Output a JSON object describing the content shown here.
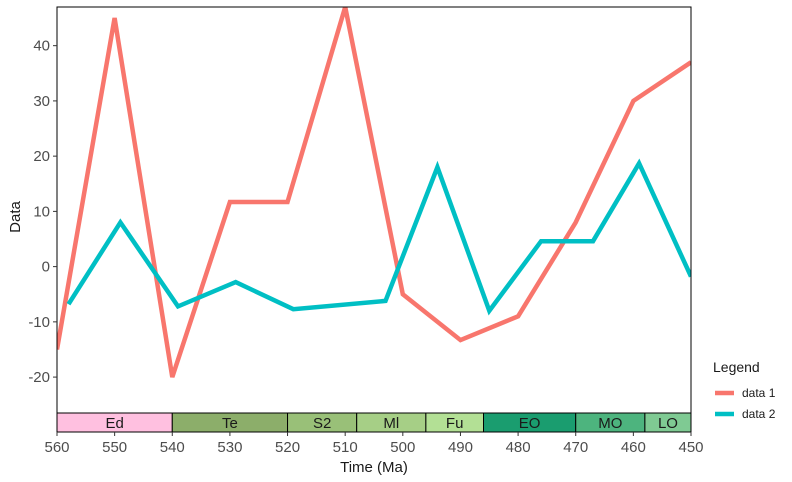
{
  "chart_data": {
    "type": "line",
    "xlabel": "Time (Ma)",
    "ylabel": "Data",
    "xlim": [
      560,
      450
    ],
    "x_reversed": true,
    "ylim": [
      -26.5,
      47
    ],
    "xticks": [
      560,
      550,
      540,
      530,
      520,
      510,
      500,
      490,
      480,
      470,
      460,
      450
    ],
    "yticks": [
      -20,
      -10,
      0,
      10,
      20,
      30,
      40
    ],
    "grid": false,
    "legend": {
      "title": "Legend",
      "placement": "right"
    },
    "series": [
      {
        "name": "data 1",
        "color": "#F8766D",
        "x": [
          560,
          550,
          540,
          530,
          520,
          510,
          500,
          490,
          480,
          470,
          460,
          450
        ],
        "y": [
          -15,
          45,
          -20,
          11.7,
          11.7,
          47,
          -5,
          -13.3,
          -9,
          8,
          30,
          37
        ]
      },
      {
        "name": "data 2",
        "color": "#00BFC4",
        "x": [
          558,
          549,
          539,
          529,
          519,
          503,
          494,
          485,
          476,
          467,
          459,
          450
        ],
        "y": [
          -6.8,
          8,
          -7.2,
          -2.8,
          -7.7,
          -6.2,
          18,
          -8,
          4.6,
          4.6,
          18.7,
          -1.8
        ]
      }
    ],
    "periods": [
      {
        "label": "Ed",
        "start": 560,
        "end": 540,
        "color": "#FFC0E0"
      },
      {
        "label": "Te",
        "start": 540,
        "end": 520,
        "color": "#8CAE6A"
      },
      {
        "label": "S2",
        "start": 520,
        "end": 508,
        "color": "#99C078"
      },
      {
        "label": "Ml",
        "start": 508,
        "end": 496,
        "color": "#A6CF86"
      },
      {
        "label": "Fu",
        "start": 496,
        "end": 486,
        "color": "#B3E095"
      },
      {
        "label": "EO",
        "start": 486,
        "end": 470,
        "color": "#1A9D6F"
      },
      {
        "label": "MO",
        "start": 470,
        "end": 458,
        "color": "#4DB47E"
      },
      {
        "label": "LO",
        "start": 458,
        "end": 450,
        "color": "#7FCA93"
      }
    ]
  }
}
